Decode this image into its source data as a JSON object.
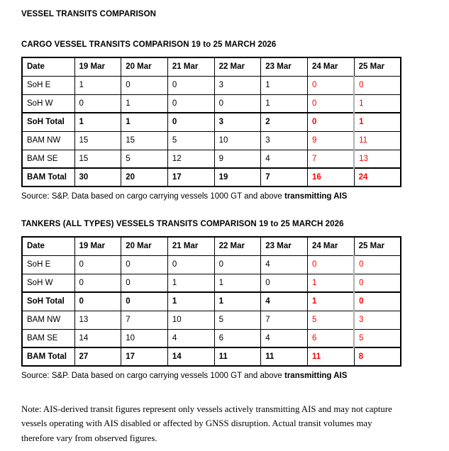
{
  "page": {
    "title": "VESSEL TRANSITS COMPARISON"
  },
  "colors": {
    "ink": "#000000",
    "red": "#ff0000",
    "gray_gridline": "#b0b0b0",
    "table_border": "#000000",
    "background": "#ffffff"
  },
  "sections": [
    {
      "heading": "CARGO VESSEL TRANSITS COMPARISON 19 to 25 MARCH 2026",
      "table": {
        "columns": [
          "Date",
          "19 Mar",
          "20 Mar",
          "21 Mar",
          "22 Mar",
          "23 Mar",
          "24 Mar",
          "25 Mar"
        ],
        "rows": [
          {
            "label": "SoH E",
            "bold": false,
            "values": [
              "1",
              "0",
              "0",
              "3",
              "1",
              "0",
              "0"
            ],
            "red_from": 5
          },
          {
            "label": "SoH W",
            "bold": false,
            "values": [
              "0",
              "1",
              "0",
              "0",
              "1",
              "0",
              "1"
            ],
            "red_from": 5
          },
          {
            "label": "SoH Total",
            "bold": true,
            "values": [
              "1",
              "1",
              "0",
              "3",
              "2",
              "0",
              "1"
            ],
            "red_from": 5
          },
          {
            "label": "BAM NW",
            "bold": false,
            "values": [
              "15",
              "15",
              "5",
              "10",
              "3",
              "9",
              "11"
            ],
            "red_from": 5
          },
          {
            "label": "BAM SE",
            "bold": false,
            "values": [
              "15",
              "5",
              "12",
              "9",
              "4",
              "7",
              "13"
            ],
            "red_from": 5
          },
          {
            "label": "BAM Total",
            "bold": true,
            "values": [
              "30",
              "20",
              "17",
              "19",
              "7",
              "16",
              "24"
            ],
            "red_from": 5
          }
        ]
      },
      "source": {
        "text": "Source: S&P. Data based on cargo carrying vessels 1000 GT and above ",
        "bold_text": "transmitting AIS"
      }
    },
    {
      "heading": "TANKERS (ALL TYPES) VESSELS TRANSITS COMPARISON 19 to 25 MARCH 2026",
      "table": {
        "columns": [
          "Date",
          "19 Mar",
          "20 Mar",
          "21 Mar",
          "22 Mar",
          "23 Mar",
          "24 Mar",
          "25 Mar"
        ],
        "rows": [
          {
            "label": "SoH E",
            "bold": false,
            "values": [
              "0",
              "0",
              "0",
              "0",
              "4",
              "0",
              "0"
            ],
            "red_from": 5
          },
          {
            "label": "SoH W",
            "bold": false,
            "values": [
              "0",
              "0",
              "1",
              "1",
              "0",
              "1",
              "0"
            ],
            "red_from": 5
          },
          {
            "label": "SoH Total",
            "bold": true,
            "values": [
              "0",
              "0",
              "1",
              "1",
              "4",
              "1",
              "0"
            ],
            "red_from": 5
          },
          {
            "label": "BAM NW",
            "bold": false,
            "values": [
              "13",
              "7",
              "10",
              "5",
              "7",
              "5",
              "3"
            ],
            "red_from": 5
          },
          {
            "label": "BAM SE",
            "bold": false,
            "values": [
              "14",
              "10",
              "4",
              "6",
              "4",
              "6",
              "5"
            ],
            "red_from": 5
          },
          {
            "label": "BAM Total",
            "bold": true,
            "values": [
              "27",
              "17",
              "14",
              "11",
              "11",
              "11",
              "8"
            ],
            "red_from": 5
          }
        ]
      },
      "source": {
        "text": "Source: S&P. Data based on cargo carrying vessels 1000 GT and above ",
        "bold_text": "transmitting AIS"
      }
    }
  ],
  "note": {
    "lines": [
      "Note: AIS-derived transit figures represent only vessels actively transmitting AIS and may not capture",
      "vessels operating with AIS disabled or affected by GNSS disruption. Actual transit volumes may",
      "therefore vary from observed figures."
    ]
  }
}
